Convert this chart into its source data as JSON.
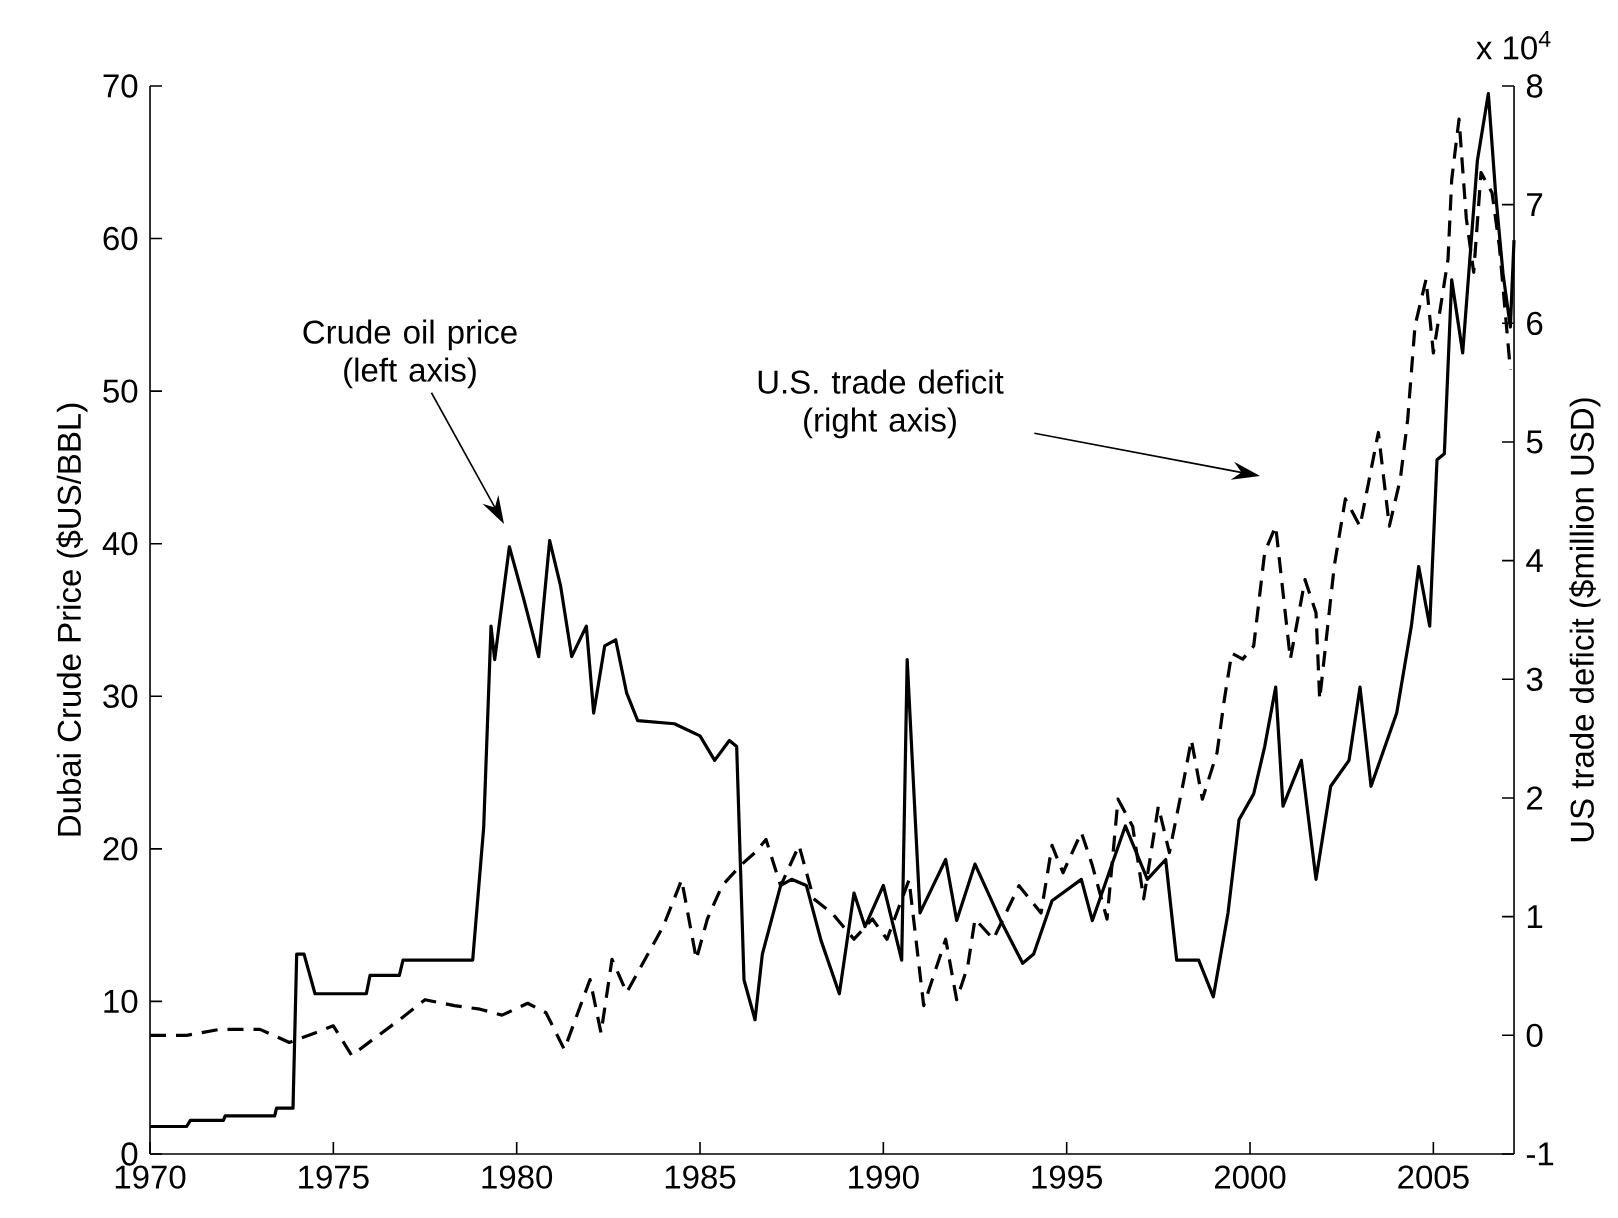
{
  "chart_data": {
    "type": "line",
    "xlabel": null,
    "ylabel": "Dubai Crude Price ($US/BBL)",
    "y2label": "US trade deficit ($million USD)",
    "xlim": [
      1970,
      2007.2
    ],
    "xticks": [
      1970,
      1975,
      1980,
      1985,
      1990,
      1995,
      2000,
      2005
    ],
    "ylim": [
      0,
      70
    ],
    "yticks": [
      0,
      10,
      20,
      30,
      40,
      50,
      60,
      70
    ],
    "y2lim": [
      -1,
      8
    ],
    "y2ticks": [
      -1,
      0,
      1,
      2,
      3,
      4,
      5,
      6,
      7,
      8
    ],
    "annotations": [
      "Crude oil price (left axis)",
      "U.S. trade deficit (right axis)",
      "x 10$^{4}$"
    ],
    "series": [
      {
        "color": "#000000",
        "line_style": "solid",
        "x": [
          1970,
          1971.0,
          1971.1,
          1972.0,
          1972.05,
          1973.4,
          1973.45,
          1973.9,
          1974.0,
          1974.2,
          1974.5,
          1975.9,
          1976.0,
          1976.8,
          1976.9,
          1978.8,
          1979.1,
          1979.3,
          1979.4,
          1979.8,
          1980.2,
          1980.6,
          1980.9,
          1981.2,
          1981.5,
          1981.9,
          1982.1,
          1982.4,
          1982.7,
          1983.0,
          1983.3,
          1984.3,
          1985.0,
          1985.4,
          1985.8,
          1986.0,
          1986.2,
          1986.5,
          1986.7,
          1986.9,
          1987.2,
          1987.5,
          1987.9,
          1988.3,
          1988.8,
          1989.2,
          1989.5,
          1990.0,
          1990.5,
          1990.65,
          1991.0,
          1991.7,
          1992.0,
          1992.5,
          1993.2,
          1993.8,
          1994.1,
          1994.6,
          1995.4,
          1995.7,
          1996.6,
          1997.2,
          1997.7,
          1998.0,
          1998.6,
          1999.0,
          1999.4,
          1999.7,
          2000.1,
          2000.4,
          2000.7,
          2000.9,
          2001.4,
          2001.8,
          2002.2,
          2002.7,
          2003.0,
          2003.3,
          2004.0,
          2004.4,
          2004.6,
          2004.9,
          2005.1,
          2005.3,
          2005.5,
          2005.8,
          2006.2,
          2006.5,
          2006.7,
          2006.9,
          2007.1,
          2007.2
        ],
        "values": [
          1.8,
          1.8,
          2.2,
          2.2,
          2.5,
          2.5,
          3.0,
          3.0,
          13.1,
          13.1,
          10.5,
          10.5,
          11.7,
          11.7,
          12.7,
          12.7,
          21.4,
          34.6,
          32.4,
          39.8,
          36.3,
          32.6,
          40.2,
          37.2,
          32.6,
          34.6,
          28.9,
          33.3,
          33.7,
          30.2,
          28.4,
          28.2,
          27.4,
          25.8,
          27.1,
          26.7,
          11.4,
          8.8,
          13.1,
          14.9,
          17.6,
          18.0,
          17.6,
          14.0,
          10.5,
          17.1,
          14.9,
          17.6,
          12.7,
          32.4,
          15.8,
          19.3,
          15.3,
          19.0,
          15.3,
          12.5,
          13.1,
          16.6,
          18.0,
          15.3,
          21.5,
          18.0,
          19.3,
          12.7,
          12.7,
          10.3,
          15.8,
          21.9,
          23.6,
          26.7,
          30.6,
          22.8,
          25.8,
          18.0,
          24.1,
          25.8,
          30.6,
          24.1,
          28.9,
          34.6,
          38.5,
          34.6,
          45.5,
          45.9,
          57.3,
          52.5,
          65.1,
          69.5,
          62.9,
          57.7,
          54.2,
          59.9
        ]
      },
      {
        "color": "#000000",
        "line_style": "dashed",
        "axis": "y2",
        "x": [
          1970,
          1971,
          1971.9,
          1973.0,
          1973.8,
          1974.5,
          1975.0,
          1975.5,
          1976.1,
          1976.8,
          1977.5,
          1978.3,
          1979.0,
          1979.6,
          1980.3,
          1980.8,
          1981.3,
          1982.0,
          1982.3,
          1982.6,
          1983.0,
          1983.5,
          1984.0,
          1984.5,
          1984.9,
          1985.2,
          1985.6,
          1986.1,
          1986.5,
          1986.8,
          1987.2,
          1987.7,
          1988.1,
          1988.6,
          1989.2,
          1989.7,
          1990.1,
          1990.7,
          1991.1,
          1991.4,
          1991.7,
          1992.0,
          1992.3,
          1992.5,
          1993.0,
          1993.7,
          1994.3,
          1994.6,
          1994.9,
          1995.4,
          1995.7,
          1996.1,
          1996.4,
          1996.8,
          1997.1,
          1997.5,
          1997.8,
          1998.2,
          1998.4,
          1998.7,
          1999.1,
          1999.3,
          1999.5,
          1999.8,
          2000.1,
          2000.4,
          2000.7,
          2000.9,
          2001.1,
          2001.5,
          2001.8,
          2001.9,
          2002.3,
          2002.6,
          2003.0,
          2003.5,
          2003.8,
          2004.1,
          2004.3,
          2004.5,
          2004.8,
          2005.0,
          2005.4,
          2005.5,
          2005.7,
          2005.9,
          2006.1,
          2006.3,
          2006.6,
          2006.8,
          2007.1
        ],
        "values": [
          0.0,
          0.0,
          0.05,
          0.05,
          -0.06,
          0.02,
          0.08,
          -0.17,
          -0.03,
          0.13,
          0.3,
          0.25,
          0.22,
          0.17,
          0.27,
          0.19,
          -0.12,
          0.47,
          0.02,
          0.64,
          0.36,
          0.64,
          0.92,
          1.31,
          0.64,
          0.98,
          1.26,
          1.43,
          1.54,
          1.65,
          1.26,
          1.6,
          1.15,
          1.03,
          0.81,
          0.98,
          0.81,
          1.31,
          0.25,
          0.53,
          0.81,
          0.3,
          0.58,
          0.98,
          0.81,
          1.26,
          1.03,
          1.6,
          1.37,
          1.71,
          1.43,
          0.98,
          1.99,
          1.76,
          1.15,
          1.93,
          1.54,
          2.16,
          2.49,
          1.99,
          2.38,
          2.83,
          3.22,
          3.17,
          3.28,
          4.07,
          4.29,
          3.73,
          3.17,
          3.84,
          3.56,
          2.83,
          3.96,
          4.52,
          4.29,
          5.08,
          4.29,
          4.69,
          5.19,
          5.98,
          6.37,
          5.75,
          6.54,
          7.21,
          7.72,
          6.88,
          6.43,
          7.27,
          7.1,
          6.65,
          5.61
        ]
      }
    ]
  }
}
